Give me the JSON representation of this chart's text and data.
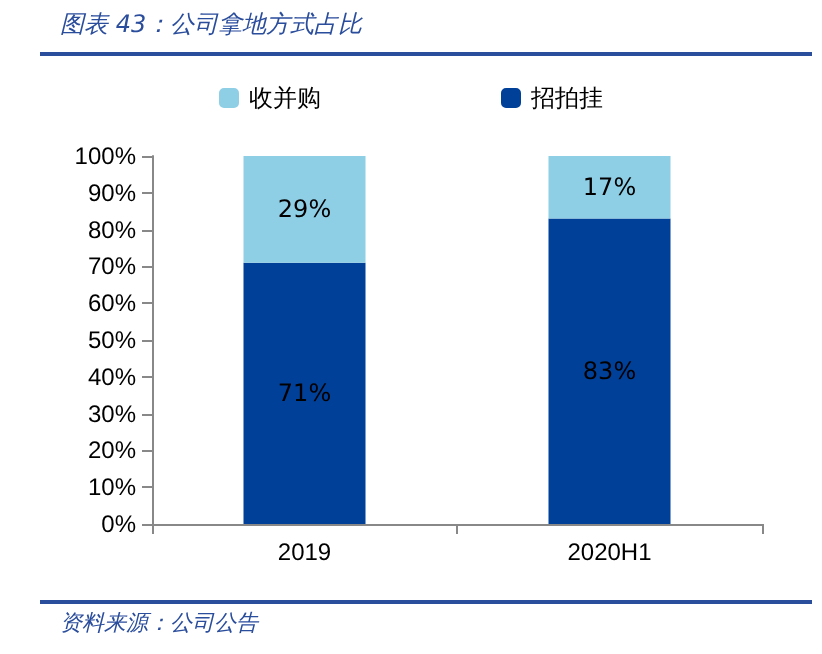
{
  "chart_data": {
    "type": "bar",
    "title": "图表 43：公司拿地方式占比",
    "annotations": [
      "资料来源：公司公告"
    ],
    "categories": [
      "2019",
      "2020H1"
    ],
    "stacked": true,
    "series": [
      {
        "name": "招拍挂",
        "color": "#004098",
        "values": [
          71,
          83
        ],
        "value_labels": [
          "71%",
          "83%"
        ]
      },
      {
        "name": "收并购",
        "color": "#8ecfe6",
        "values": [
          29,
          17
        ],
        "value_labels": [
          "29%",
          "17%"
        ]
      }
    ],
    "ylim": [
      0,
      100
    ],
    "yticks": [
      {
        "value": 0,
        "label": "0%"
      },
      {
        "value": 10,
        "label": "10%"
      },
      {
        "value": 20,
        "label": "20%"
      },
      {
        "value": 30,
        "label": "30%"
      },
      {
        "value": 40,
        "label": "40%"
      },
      {
        "value": 50,
        "label": "50%"
      },
      {
        "value": 60,
        "label": "60%"
      },
      {
        "value": 70,
        "label": "70%"
      },
      {
        "value": 80,
        "label": "80%"
      },
      {
        "value": 90,
        "label": "90%"
      },
      {
        "value": 100,
        "label": "100%"
      }
    ],
    "grid": false,
    "legend": "top"
  }
}
